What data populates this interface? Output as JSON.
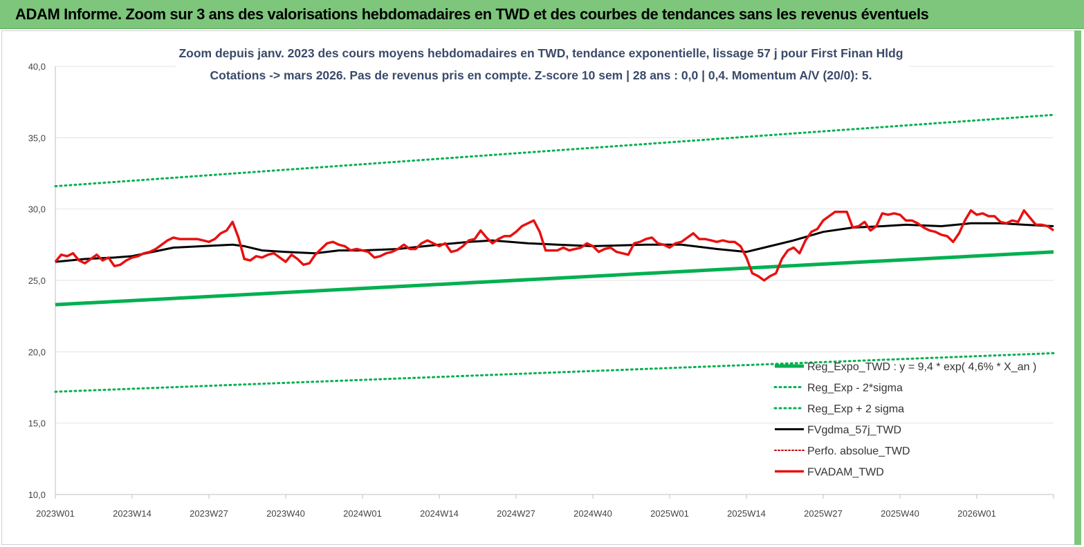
{
  "banner": {
    "title": "ADAM Informe. Zoom sur 3 ans des valorisations hebdomadaires en TWD et des courbes de tendances sans les revenus éventuels"
  },
  "chart_data": {
    "type": "line",
    "title": "Zoom depuis janv. 2023 des cours moyens hebdomadaires en TWD, tendance exponentielle, lissage 57 j pour First Finan Hldg",
    "subtitle": "Cotations -> mars 2026. Pas de revenus pris en compte. Z-score 10 sem | 28 ans : 0,0 | 0,4. Momentum A/V (20/0): 5.",
    "xlabel": "",
    "ylabel": "",
    "ylim": [
      10,
      40
    ],
    "yticks": [
      "10,0",
      "15,0",
      "20,0",
      "25,0",
      "30,0",
      "35,0",
      "40,0"
    ],
    "xticks": [
      "2023W01",
      "2023W14",
      "2023W27",
      "2023W40",
      "2024W01",
      "2024W14",
      "2024W27",
      "2024W40",
      "2025W01",
      "2025W14",
      "2025W27",
      "2025W40",
      "2026W01"
    ],
    "x_unit": "weeks since 2023W01",
    "legend_position": "bottom-right",
    "grid": "horizontal",
    "colors": {
      "trend": "#00b050",
      "band": "#00b050",
      "smooth": "#000000",
      "perf": "#c00000",
      "price": "#e81010"
    },
    "series": [
      {
        "name": "Reg_Expo_TWD : y = 9,4 * exp( 4,6% * X_an )",
        "style": "thick",
        "points": [
          [
            0,
            23.3
          ],
          [
            169,
            27.0
          ]
        ]
      },
      {
        "name": "Reg_Exp - 2*sigma",
        "style": "dotted",
        "points": [
          [
            0,
            17.2
          ],
          [
            169,
            19.9
          ]
        ]
      },
      {
        "name": "Reg_Exp + 2 sigma",
        "style": "dotted",
        "points": [
          [
            0,
            31.6
          ],
          [
            169,
            36.6
          ]
        ]
      },
      {
        "name": "FVgdma_57j_TWD",
        "style": "solid",
        "points": [
          [
            0,
            26.3
          ],
          [
            5,
            26.5
          ],
          [
            10,
            26.6
          ],
          [
            13,
            26.7
          ],
          [
            20,
            27.3
          ],
          [
            25,
            27.4
          ],
          [
            30,
            27.5
          ],
          [
            32,
            27.4
          ],
          [
            35,
            27.1
          ],
          [
            39,
            27.0
          ],
          [
            44,
            26.9
          ],
          [
            48,
            27.1
          ],
          [
            52,
            27.1
          ],
          [
            58,
            27.2
          ],
          [
            65,
            27.5
          ],
          [
            70,
            27.7
          ],
          [
            74,
            27.8
          ],
          [
            80,
            27.6
          ],
          [
            85,
            27.5
          ],
          [
            91,
            27.4
          ],
          [
            100,
            27.5
          ],
          [
            106,
            27.5
          ],
          [
            112,
            27.2
          ],
          [
            117,
            27.0
          ],
          [
            120,
            27.3
          ],
          [
            125,
            27.8
          ],
          [
            130,
            28.4
          ],
          [
            135,
            28.7
          ],
          [
            140,
            28.8
          ],
          [
            144,
            28.9
          ],
          [
            150,
            28.8
          ],
          [
            155,
            29.0
          ],
          [
            160,
            29.0
          ],
          [
            164,
            28.9
          ],
          [
            169,
            28.8
          ]
        ]
      },
      {
        "name": "Perfo. absolue_TWD",
        "style": "dotted",
        "points": []
      },
      {
        "name": "FVADAM_TWD",
        "style": "thick",
        "points": [
          [
            0,
            26.3
          ],
          [
            1,
            26.8
          ],
          [
            2,
            26.7
          ],
          [
            3,
            26.9
          ],
          [
            4,
            26.4
          ],
          [
            5,
            26.2
          ],
          [
            6,
            26.5
          ],
          [
            7,
            26.8
          ],
          [
            8,
            26.4
          ],
          [
            9,
            26.6
          ],
          [
            10,
            26.0
          ],
          [
            11,
            26.1
          ],
          [
            12,
            26.4
          ],
          [
            13,
            26.6
          ],
          [
            14,
            26.7
          ],
          [
            15,
            26.9
          ],
          [
            16,
            27.0
          ],
          [
            17,
            27.2
          ],
          [
            18,
            27.5
          ],
          [
            19,
            27.8
          ],
          [
            20,
            28.0
          ],
          [
            21,
            27.9
          ],
          [
            22,
            27.9
          ],
          [
            23,
            27.9
          ],
          [
            24,
            27.9
          ],
          [
            25,
            27.8
          ],
          [
            26,
            27.7
          ],
          [
            27,
            27.9
          ],
          [
            28,
            28.3
          ],
          [
            29,
            28.5
          ],
          [
            30,
            29.1
          ],
          [
            31,
            28.0
          ],
          [
            32,
            26.5
          ],
          [
            33,
            26.4
          ],
          [
            34,
            26.7
          ],
          [
            35,
            26.6
          ],
          [
            36,
            26.8
          ],
          [
            37,
            26.9
          ],
          [
            38,
            26.6
          ],
          [
            39,
            26.3
          ],
          [
            40,
            26.8
          ],
          [
            41,
            26.5
          ],
          [
            42,
            26.1
          ],
          [
            43,
            26.2
          ],
          [
            44,
            26.8
          ],
          [
            45,
            27.2
          ],
          [
            46,
            27.6
          ],
          [
            47,
            27.7
          ],
          [
            48,
            27.5
          ],
          [
            49,
            27.4
          ],
          [
            50,
            27.1
          ],
          [
            51,
            27.2
          ],
          [
            52,
            27.1
          ],
          [
            53,
            27.0
          ],
          [
            54,
            26.6
          ],
          [
            55,
            26.7
          ],
          [
            56,
            26.9
          ],
          [
            57,
            27.0
          ],
          [
            58,
            27.2
          ],
          [
            59,
            27.5
          ],
          [
            60,
            27.2
          ],
          [
            61,
            27.2
          ],
          [
            62,
            27.6
          ],
          [
            63,
            27.8
          ],
          [
            64,
            27.6
          ],
          [
            65,
            27.4
          ],
          [
            66,
            27.6
          ],
          [
            67,
            27.0
          ],
          [
            68,
            27.1
          ],
          [
            69,
            27.4
          ],
          [
            70,
            27.8
          ],
          [
            71,
            27.9
          ],
          [
            72,
            28.5
          ],
          [
            73,
            28.0
          ],
          [
            74,
            27.6
          ],
          [
            75,
            27.9
          ],
          [
            76,
            28.1
          ],
          [
            77,
            28.1
          ],
          [
            78,
            28.4
          ],
          [
            79,
            28.8
          ],
          [
            80,
            29.0
          ],
          [
            81,
            29.2
          ],
          [
            82,
            28.4
          ],
          [
            83,
            27.1
          ],
          [
            84,
            27.1
          ],
          [
            85,
            27.1
          ],
          [
            86,
            27.3
          ],
          [
            87,
            27.1
          ],
          [
            88,
            27.2
          ],
          [
            89,
            27.3
          ],
          [
            90,
            27.6
          ],
          [
            91,
            27.4
          ],
          [
            92,
            27.0
          ],
          [
            93,
            27.2
          ],
          [
            94,
            27.3
          ],
          [
            95,
            27.0
          ],
          [
            96,
            26.9
          ],
          [
            97,
            26.8
          ],
          [
            98,
            27.6
          ],
          [
            99,
            27.7
          ],
          [
            100,
            27.9
          ],
          [
            101,
            28.0
          ],
          [
            102,
            27.6
          ],
          [
            103,
            27.5
          ],
          [
            104,
            27.3
          ],
          [
            105,
            27.6
          ],
          [
            106,
            27.7
          ],
          [
            107,
            28.0
          ],
          [
            108,
            28.3
          ],
          [
            109,
            27.9
          ],
          [
            110,
            27.9
          ],
          [
            111,
            27.8
          ],
          [
            112,
            27.7
          ],
          [
            113,
            27.8
          ],
          [
            114,
            27.7
          ],
          [
            115,
            27.7
          ],
          [
            116,
            27.4
          ],
          [
            117,
            26.6
          ],
          [
            118,
            25.5
          ],
          [
            119,
            25.3
          ],
          [
            120,
            25.0
          ],
          [
            121,
            25.3
          ],
          [
            122,
            25.5
          ],
          [
            123,
            26.5
          ],
          [
            124,
            27.1
          ],
          [
            125,
            27.3
          ],
          [
            126,
            26.9
          ],
          [
            127,
            27.8
          ],
          [
            128,
            28.4
          ],
          [
            129,
            28.6
          ],
          [
            130,
            29.2
          ],
          [
            131,
            29.5
          ],
          [
            132,
            29.8
          ],
          [
            133,
            29.8
          ],
          [
            134,
            29.8
          ],
          [
            135,
            28.7
          ],
          [
            136,
            28.8
          ],
          [
            137,
            29.1
          ],
          [
            138,
            28.5
          ],
          [
            139,
            28.8
          ],
          [
            140,
            29.7
          ],
          [
            141,
            29.6
          ],
          [
            142,
            29.7
          ],
          [
            143,
            29.6
          ],
          [
            144,
            29.2
          ],
          [
            145,
            29.2
          ],
          [
            146,
            29.0
          ],
          [
            147,
            28.7
          ],
          [
            148,
            28.5
          ],
          [
            149,
            28.4
          ],
          [
            150,
            28.2
          ],
          [
            151,
            28.1
          ],
          [
            152,
            27.7
          ],
          [
            153,
            28.3
          ],
          [
            154,
            29.2
          ],
          [
            155,
            29.9
          ],
          [
            156,
            29.6
          ],
          [
            157,
            29.7
          ],
          [
            158,
            29.5
          ],
          [
            159,
            29.5
          ],
          [
            160,
            29.1
          ],
          [
            161,
            29.0
          ],
          [
            162,
            29.2
          ],
          [
            163,
            29.1
          ],
          [
            164,
            29.9
          ],
          [
            165,
            29.4
          ],
          [
            166,
            28.9
          ],
          [
            167,
            28.9
          ],
          [
            168,
            28.8
          ],
          [
            169,
            28.5
          ]
        ]
      }
    ]
  }
}
